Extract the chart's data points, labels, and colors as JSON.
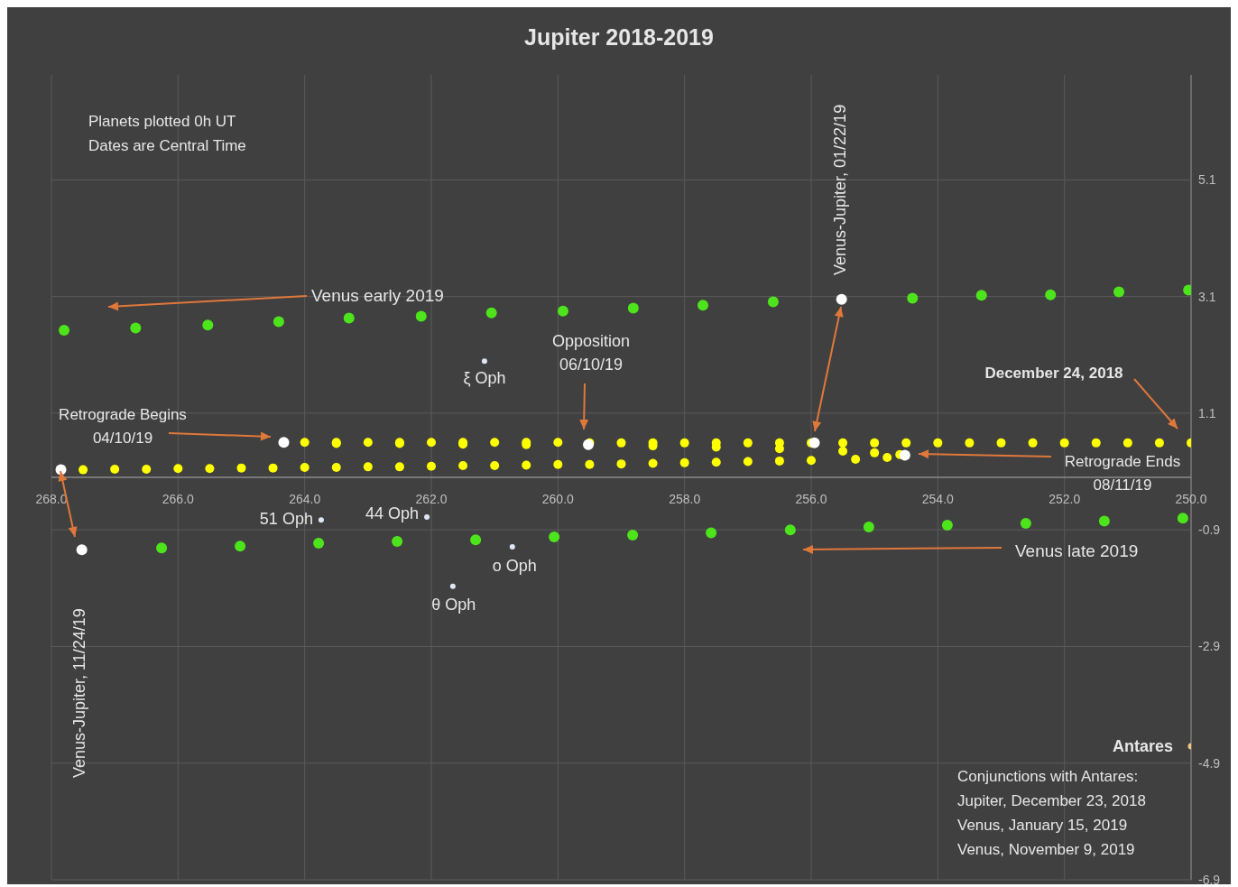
{
  "chart_data": {
    "type": "scatter",
    "title": "Jupiter 2018-2019",
    "xlim": [
      268,
      250
    ],
    "xticks": [
      {
        "value": 268,
        "label": "268.0"
      },
      {
        "value": 266,
        "label": "266.0"
      },
      {
        "value": 264,
        "label": "264.0"
      },
      {
        "value": 262,
        "label": "262.0"
      },
      {
        "value": 260,
        "label": "260.0"
      },
      {
        "value": 258,
        "label": "258.0"
      },
      {
        "value": 256,
        "label": "256.0"
      },
      {
        "value": 254,
        "label": "254.0"
      },
      {
        "value": 252,
        "label": "252.0"
      },
      {
        "value": 250,
        "label": "250.0"
      }
    ],
    "ylim": [
      -6.9,
      6.9
    ],
    "yticks": [
      -6.9,
      -4.9,
      -2.9,
      -0.9,
      1.1,
      3.1,
      5.1
    ],
    "grid": true,
    "legend": false,
    "marker": "circle",
    "series": [
      {
        "color": "#ffff00",
        "x": [
          250,
          250.5,
          251,
          251.5,
          252,
          252.5,
          253,
          253.5,
          254,
          254.5,
          255,
          255.5,
          256,
          256.5,
          257,
          257.5,
          258,
          258.5,
          259,
          259.5,
          260,
          260.5,
          261,
          261.5,
          262,
          262.5,
          263,
          263.5,
          264,
          263.5,
          262.5,
          261.5,
          260.5,
          259.5,
          258.5,
          257.5,
          256.5,
          255.5,
          255,
          254.6,
          254.8,
          255.3,
          256,
          256.5,
          257,
          257.5,
          258,
          258.5,
          259,
          259.5,
          260,
          260.5,
          261,
          261.5,
          262,
          262.5,
          263,
          263.5,
          264,
          264.5,
          265,
          265.5,
          266,
          266.5,
          267,
          267.5
        ],
        "values": [
          0.59,
          0.59,
          0.59,
          0.59,
          0.59,
          0.59,
          0.59,
          0.59,
          0.59,
          0.59,
          0.59,
          0.59,
          0.59,
          0.59,
          0.59,
          0.59,
          0.59,
          0.59,
          0.59,
          0.59,
          0.6,
          0.6,
          0.6,
          0.6,
          0.6,
          0.6,
          0.6,
          0.6,
          0.6,
          0.58,
          0.58,
          0.57,
          0.56,
          null,
          0.54,
          0.52,
          0.49,
          0.45,
          0.42,
          0.39,
          0.34,
          0.31,
          0.29,
          0.28,
          0.27,
          0.26,
          0.25,
          0.24,
          0.23,
          0.22,
          0.22,
          0.21,
          0.2,
          0.2,
          0.19,
          0.18,
          0.18,
          0.17,
          0.17,
          0.16,
          0.16,
          0.15,
          0.15,
          0.14,
          0.14,
          0.13
        ]
      },
      {
        "color": "#4ee41c",
        "x": [
          267.8,
          266.67,
          265.53,
          264.41,
          263.3,
          262.16,
          261.05,
          259.92,
          258.81,
          257.71,
          256.6,
          254.4,
          253.31,
          252.22,
          251.14,
          250.04
        ],
        "values": [
          2.52,
          2.56,
          2.61,
          2.67,
          2.73,
          2.76,
          2.82,
          2.85,
          2.9,
          2.95,
          3.01,
          3.07,
          3.12,
          3.13,
          3.18,
          3.21
        ]
      },
      {
        "color": "#4ee41c",
        "x": [
          266.26,
          265.02,
          263.78,
          262.54,
          261.3,
          260.06,
          258.82,
          257.58,
          256.33,
          255.09,
          253.85,
          252.61,
          251.37,
          250.13
        ],
        "values": [
          -1.21,
          -1.18,
          -1.13,
          -1.1,
          -1.07,
          -1.02,
          -0.99,
          -0.95,
          -0.9,
          -0.85,
          -0.82,
          -0.79,
          -0.75,
          -0.7
        ]
      },
      {
        "color": "#ffffff",
        "x": [
          264.33,
          259.52,
          254.52,
          255.95,
          255.52,
          267.85,
          267.52
        ],
        "values": [
          0.6,
          0.56,
          0.38,
          0.59,
          3.05,
          0.13,
          -1.24
        ]
      },
      {
        "color": "#dfe6f5",
        "x": [
          261.16,
          263.74,
          262.07,
          260.72,
          261.66
        ],
        "values": [
          1.99,
          -0.73,
          -0.68,
          -1.19,
          -1.87
        ]
      },
      {
        "color": "#f5c77e",
        "x": [
          250.0
        ],
        "values": [
          -4.61
        ]
      }
    ],
    "annotations": [
      "Planets plotted 0h UT\nDates are Central Time",
      "Venus early 2019",
      "Venus late 2019",
      "Opposition\n06/10/19",
      "Retrograde Begins\n04/10/19",
      "Retrograde Ends\n08/11/19",
      "December 24, 2018",
      "Venus-Jupiter, 01/22/19",
      "Venus-Jupiter, 11/24/19",
      {
        "text": "ξ Oph",
        "x": 261.16,
        "y": 1.99
      },
      {
        "text": "51 Oph",
        "x": 263.74,
        "y": -0.73
      },
      {
        "text": "44 Oph",
        "x": 262.07,
        "y": -0.68
      },
      {
        "text": "o Oph",
        "x": 260.72,
        "y": -1.19
      },
      {
        "text": "θ Oph",
        "x": 261.66,
        "y": -1.87
      },
      {
        "text": "Antares",
        "x": 250.0,
        "y": -4.61
      },
      "Conjunctions with Antares:\nJupiter, December 23, 2018\nVenus, January 15, 2019\nVenus, November 9, 2019"
    ]
  }
}
